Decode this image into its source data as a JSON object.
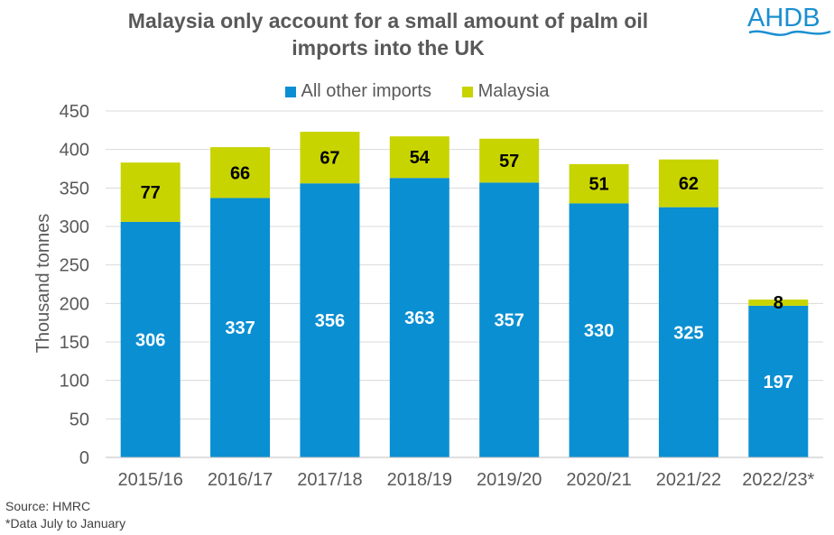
{
  "title_line1": "Malaysia only account for a small amount of palm oil",
  "title_line2": "imports into the UK",
  "logo_text": "AHDB",
  "source": "Source: HMRC",
  "note": "*Data July to January",
  "colors": {
    "other": "#0a8fd2",
    "malaysia": "#c8d400",
    "grid": "#d9d9d9",
    "text": "#595959"
  },
  "chart_data": {
    "type": "bar",
    "stacked": true,
    "title": "Malaysia only account for a small amount of palm oil imports into the UK",
    "xlabel": "",
    "ylabel": "Thousand tonnes",
    "ylim": [
      0,
      450
    ],
    "yticks": [
      0,
      50,
      100,
      150,
      200,
      250,
      300,
      350,
      400,
      450
    ],
    "categories": [
      "2015/16",
      "2016/17",
      "2017/18",
      "2018/19",
      "2019/20",
      "2020/21",
      "2021/22",
      "2022/23*"
    ],
    "series": [
      {
        "name": "All other imports",
        "values": [
          306,
          337,
          356,
          363,
          357,
          330,
          325,
          197
        ]
      },
      {
        "name": "Malaysia",
        "values": [
          77,
          66,
          67,
          54,
          57,
          51,
          62,
          8
        ]
      }
    ],
    "legend": "top-center",
    "grid": true
  }
}
